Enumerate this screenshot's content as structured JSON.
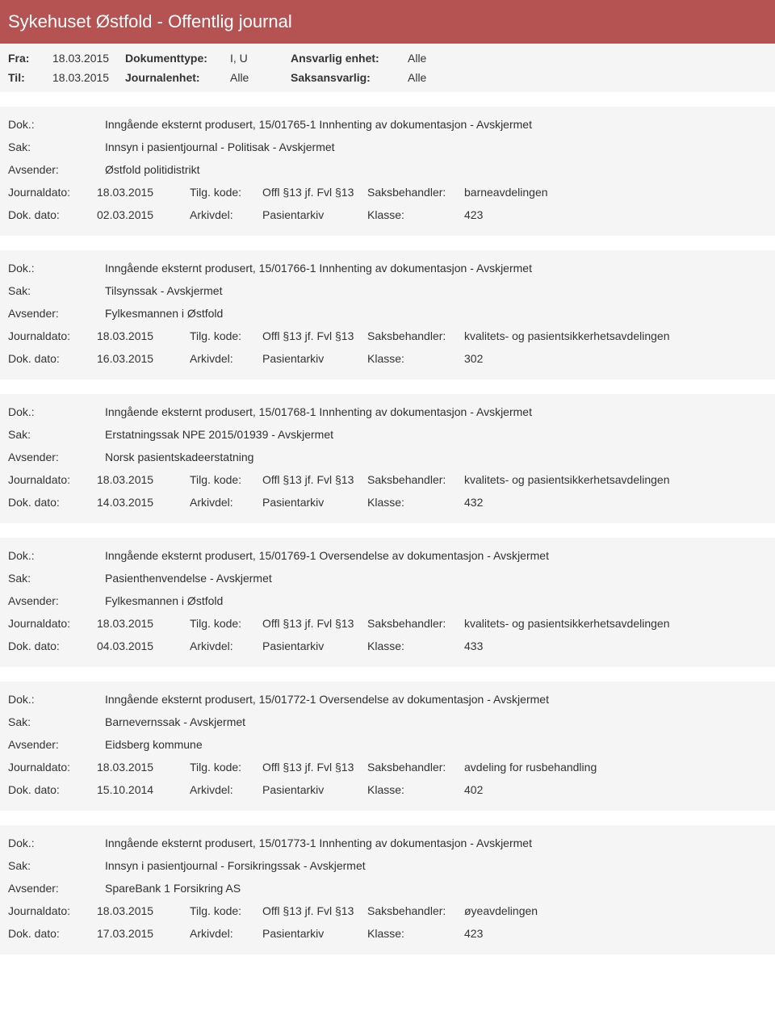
{
  "page": {
    "title": "Sykehuset Østfold - Offentlig journal",
    "labels": {
      "fra": "Fra:",
      "til": "Til:",
      "dokumenttype": "Dokumenttype:",
      "journalenhet": "Journalenhet:",
      "ansvarlig_enhet": "Ansvarlig enhet:",
      "saksansvarlig": "Saksansvarlig:"
    },
    "fra": "18.03.2015",
    "til": "18.03.2015",
    "dokumenttype": "I, U",
    "journalenhet": "Alle",
    "ansvarlig_enhet": "Alle",
    "saksansvarlig": "Alle"
  },
  "labels": {
    "dok": "Dok.:",
    "sak": "Sak:",
    "avsender": "Avsender:",
    "journaldato": "Journaldato:",
    "dok_dato": "Dok. dato:",
    "tilg_kode": "Tilg. kode:",
    "arkivdel": "Arkivdel:",
    "saksbehandler": "Saksbehandler:",
    "klasse": "Klasse:"
  },
  "entries": [
    {
      "dok": "Inngående eksternt produsert, 15/01765-1 Innhenting av dokumentasjon - Avskjermet",
      "sak": "Innsyn i pasientjournal - Politisak - Avskjermet",
      "avsender": "Østfold politidistrikt",
      "journaldato": "18.03.2015",
      "tilg_kode": "Offl §13 jf. Fvl §13",
      "saksbehandler": "barneavdelingen",
      "dok_dato": "02.03.2015",
      "arkivdel": "Pasientarkiv",
      "klasse": "423"
    },
    {
      "dok": "Inngående eksternt produsert, 15/01766-1 Innhenting av dokumentasjon - Avskjermet",
      "sak": "Tilsynssak - Avskjermet",
      "avsender": "Fylkesmannen i Østfold",
      "journaldato": "18.03.2015",
      "tilg_kode": "Offl §13 jf. Fvl §13",
      "saksbehandler": "kvalitets- og pasientsikkerhetsavdelingen",
      "dok_dato": "16.03.2015",
      "arkivdel": "Pasientarkiv",
      "klasse": "302"
    },
    {
      "dok": "Inngående eksternt produsert, 15/01768-1 Innhenting av dokumentasjon - Avskjermet",
      "sak": "Erstatningssak NPE 2015/01939 - Avskjermet",
      "avsender": "Norsk pasientskadeerstatning",
      "journaldato": "18.03.2015",
      "tilg_kode": "Offl §13 jf. Fvl §13",
      "saksbehandler": "kvalitets- og pasientsikkerhetsavdelingen",
      "dok_dato": "14.03.2015",
      "arkivdel": "Pasientarkiv",
      "klasse": "432"
    },
    {
      "dok": "Inngående eksternt produsert, 15/01769-1 Oversendelse av dokumentasjon - Avskjermet",
      "sak": "Pasienthenvendelse - Avskjermet",
      "avsender": "Fylkesmannen i Østfold",
      "journaldato": "18.03.2015",
      "tilg_kode": "Offl §13 jf. Fvl §13",
      "saksbehandler": "kvalitets- og pasientsikkerhetsavdelingen",
      "dok_dato": "04.03.2015",
      "arkivdel": "Pasientarkiv",
      "klasse": "433"
    },
    {
      "dok": "Inngående eksternt produsert, 15/01772-1 Oversendelse av dokumentasjon - Avskjermet",
      "sak": "Barnevernssak - Avskjermet",
      "avsender": "Eidsberg kommune",
      "journaldato": "18.03.2015",
      "tilg_kode": "Offl §13 jf. Fvl §13",
      "saksbehandler": "avdeling for rusbehandling",
      "dok_dato": "15.10.2014",
      "arkivdel": "Pasientarkiv",
      "klasse": "402"
    },
    {
      "dok": "Inngående eksternt produsert, 15/01773-1 Innhenting av dokumentasjon - Avskjermet",
      "sak": "Innsyn i pasientjournal - Forsikringssak - Avskjermet",
      "avsender": "SpareBank 1 Forsikring AS",
      "journaldato": "18.03.2015",
      "tilg_kode": "Offl §13 jf. Fvl §13",
      "saksbehandler": "øyeavdelingen",
      "dok_dato": "17.03.2015",
      "arkivdel": "Pasientarkiv",
      "klasse": "423"
    }
  ]
}
